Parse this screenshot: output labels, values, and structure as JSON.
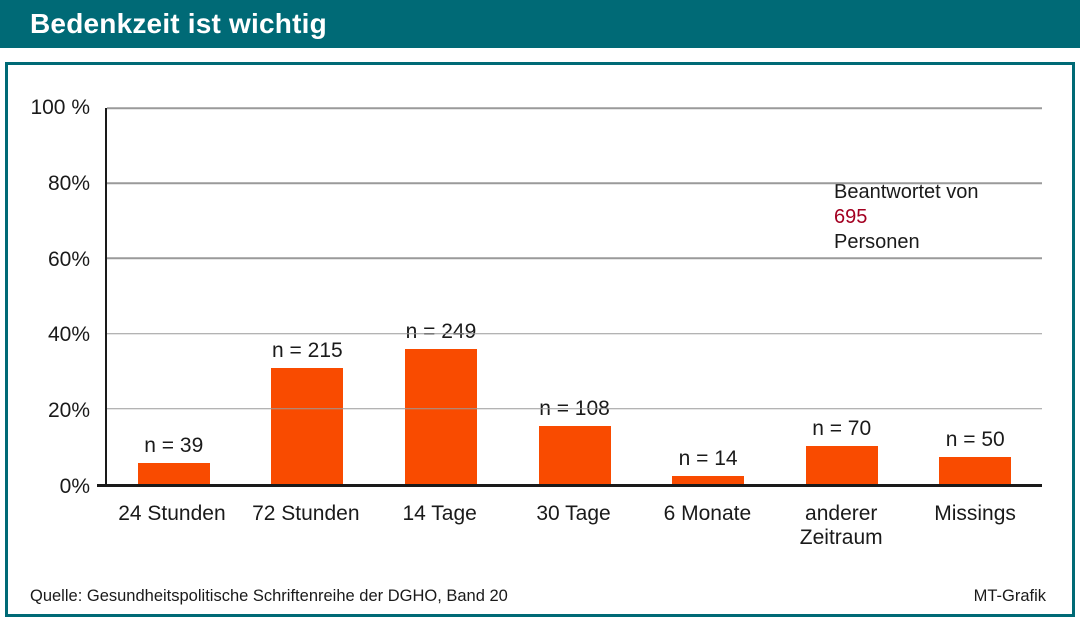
{
  "header": {
    "title": "Bedenkzeit ist wichtig"
  },
  "chart_data": {
    "type": "bar",
    "title": "Bedenkzeit ist wichtig",
    "categories": [
      "24 Stunden",
      "72 Stunden",
      "14 Tage",
      "30 Tage",
      "6 Monate",
      "anderer Zeitraum",
      "Missings"
    ],
    "values_n": [
      39,
      215,
      249,
      108,
      14,
      70,
      50
    ],
    "values_percent": [
      5.6,
      30.9,
      35.8,
      15.5,
      2.0,
      10.1,
      7.2
    ],
    "bar_labels": [
      "n = 39",
      "n = 215",
      "n = 249",
      "n = 108",
      "n = 14",
      "n = 70",
      "n = 50"
    ],
    "total_n": 695,
    "y_ticks": [
      "100 %",
      "80%",
      "60%",
      "40%",
      "20%",
      "0%"
    ],
    "ylim": [
      0,
      100
    ],
    "grid": true,
    "legend": "none",
    "bar_color": "#F94B00",
    "annotation": {
      "line1": "Beantwortet von",
      "value": "695",
      "line3": "Personen",
      "value_color": "#A30021"
    }
  },
  "footer": {
    "source": "Quelle: Gesundheitspolitische Schriftenreihe der DGHO, Band 20",
    "credit": "MT-Grafik"
  },
  "colors": {
    "accent_teal": "#006A76",
    "bar_orange": "#F94B00",
    "value_red": "#A30021",
    "gridline_grey": "#9a9a9a"
  }
}
